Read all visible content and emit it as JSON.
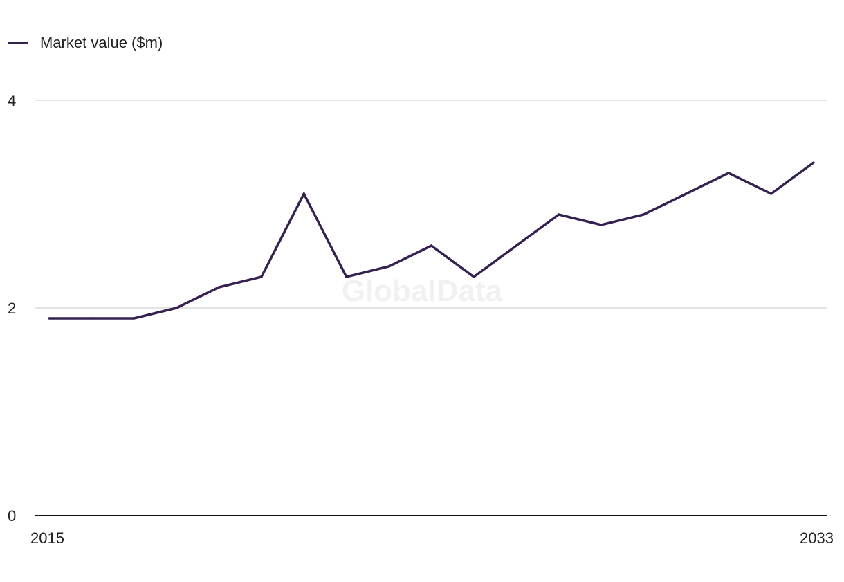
{
  "watermark": "GlobalData",
  "colors": {
    "series": "#34214f",
    "grid": "#d4d4d8",
    "axis": "#111111",
    "text": "#222222",
    "watermark": "#f1f1f3"
  },
  "chart_data": {
    "type": "line",
    "legend_position": "top-left",
    "grid": true,
    "x": [
      2015,
      2016,
      2017,
      2018,
      2019,
      2020,
      2021,
      2022,
      2023,
      2024,
      2025,
      2026,
      2027,
      2028,
      2029,
      2030,
      2031,
      2032,
      2033
    ],
    "x_tick_labels": [
      "2015",
      "2033"
    ],
    "y_ticks": [
      0,
      2,
      4
    ],
    "ylim": [
      0,
      4
    ],
    "series": [
      {
        "name": "Market value ($m)",
        "values": [
          1.9,
          1.9,
          1.9,
          2.0,
          2.2,
          2.3,
          3.1,
          2.3,
          2.4,
          2.6,
          2.3,
          2.6,
          2.9,
          2.8,
          2.9,
          3.1,
          3.3,
          3.1,
          3.4
        ]
      }
    ]
  }
}
